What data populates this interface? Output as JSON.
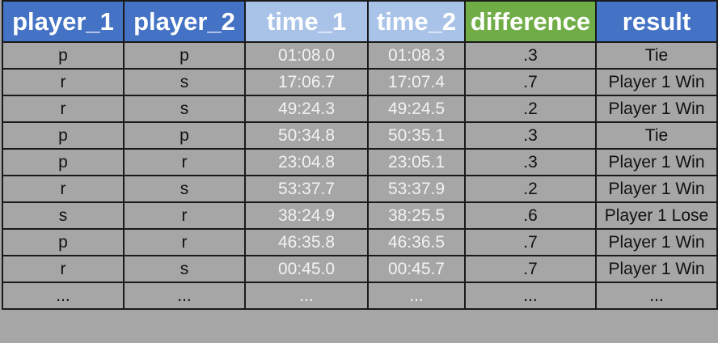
{
  "headers": [
    {
      "label": "player_1",
      "color": "#4472c4"
    },
    {
      "label": "player_2",
      "color": "#4472c4"
    },
    {
      "label": "time_1",
      "color": "#a9c3e8"
    },
    {
      "label": "time_2",
      "color": "#a9c3e8"
    },
    {
      "label": "difference",
      "color": "#70ad47"
    },
    {
      "label": "result",
      "color": "#4472c4"
    }
  ],
  "rows": [
    [
      "p",
      "p",
      "01:08.0",
      "01:08.3",
      ".3",
      "Tie"
    ],
    [
      "r",
      "s",
      "17:06.7",
      "17:07.4",
      ".7",
      "Player 1 Win"
    ],
    [
      "r",
      "s",
      "49:24.3",
      "49:24.5",
      ".2",
      "Player 1 Win"
    ],
    [
      "p",
      "p",
      "50:34.8",
      "50:35.1",
      ".3",
      "Tie"
    ],
    [
      "p",
      "r",
      "23:04.8",
      "23:05.1",
      ".3",
      "Player 1 Win"
    ],
    [
      "r",
      "s",
      "53:37.7",
      "53:37.9",
      ".2",
      "Player 1 Win"
    ],
    [
      "s",
      "r",
      "38:24.9",
      "38:25.5",
      ".6",
      "Player 1 Lose"
    ],
    [
      "p",
      "r",
      "46:35.8",
      "46:36.5",
      ".7",
      "Player 1 Win"
    ],
    [
      "r",
      "s",
      "00:45.0",
      "00:45.7",
      ".7",
      "Player 1 Win"
    ],
    [
      "...",
      "...",
      "...",
      "...",
      "...",
      "..."
    ]
  ],
  "colors": {
    "background": "#a6a6a6",
    "grid": "#1a1a1a",
    "header_blue": "#4472c4",
    "header_light_blue": "#a9c3e8",
    "header_green": "#70ad47"
  }
}
